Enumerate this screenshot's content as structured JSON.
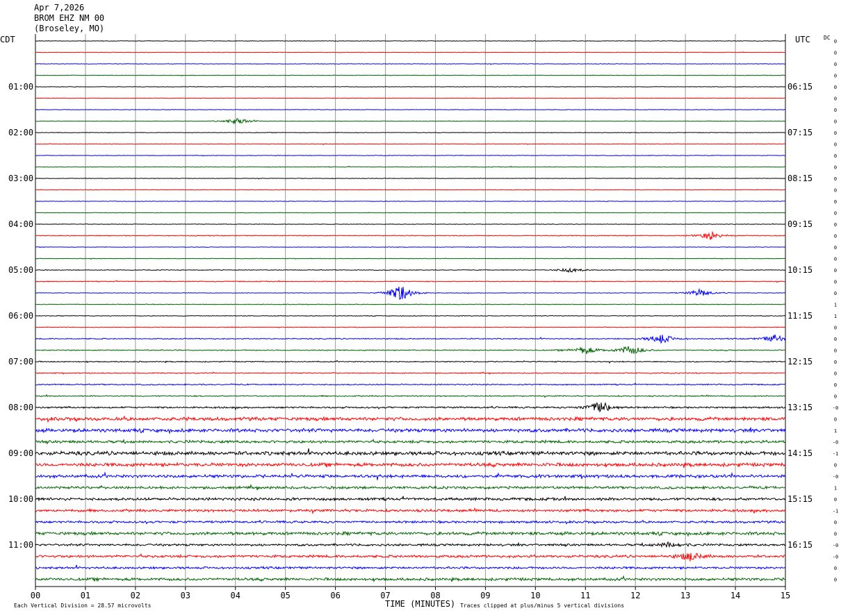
{
  "header": {
    "date": "Apr 7,2026",
    "station": "BROM EHZ NM 00",
    "location": "(Broseley, MO)"
  },
  "colors": {
    "trace_cycle": [
      "#000000",
      "#ff0000",
      "#0000ff",
      "#006400"
    ]
  },
  "chart_data": {
    "type": "line",
    "title": "",
    "xlabel": "TIME (MINUTES)",
    "x_ticks": [
      "00",
      "01",
      "02",
      "03",
      "04",
      "05",
      "06",
      "07",
      "08",
      "09",
      "10",
      "11",
      "12",
      "13",
      "14",
      "15"
    ],
    "xlim": [
      0,
      15
    ],
    "left_axis_label": "CDT",
    "right_axis_label": "UTC",
    "left_hour_labels": [
      "01:00",
      "02:00",
      "03:00",
      "04:00",
      "05:00",
      "06:00",
      "07:00",
      "08:00",
      "09:00",
      "10:00",
      "11:00"
    ],
    "right_hour_labels": [
      "06:15",
      "07:15",
      "08:15",
      "09:15",
      "10:15",
      "11:15",
      "12:15",
      "13:15",
      "14:15",
      "15:15",
      "16:15"
    ],
    "trace_count": 48,
    "minutes_per_trace": 15,
    "dc_label": "DC",
    "dc_values": [
      "0",
      "0",
      "0",
      "0",
      "0",
      "0",
      "0",
      "0",
      "0",
      "0",
      "0",
      "0",
      "0",
      "0",
      "0",
      "0",
      "0",
      "0",
      "0",
      "0",
      "0",
      "0",
      "0",
      "1",
      "1",
      "0",
      "0",
      "0",
      "0",
      "0",
      "0",
      "0",
      "-0",
      "0",
      "1",
      "-0",
      "-1",
      "0",
      "-0",
      "1",
      "0",
      "-1",
      "0",
      "0",
      "-0",
      "-0",
      "0",
      "0"
    ],
    "amplitude_scale": [
      0.3,
      0.3,
      0.3,
      0.3,
      0.3,
      0.3,
      0.3,
      0.3,
      0.3,
      0.3,
      0.3,
      0.4,
      0.3,
      0.3,
      0.3,
      0.3,
      0.3,
      0.5,
      0.3,
      0.3,
      0.4,
      0.5,
      0.3,
      0.4,
      0.4,
      0.4,
      0.6,
      0.6,
      0.6,
      0.6,
      0.7,
      0.7,
      1.0,
      2.0,
      2.0,
      1.6,
      2.2,
      2.0,
      1.8,
      1.5,
      1.6,
      1.5,
      1.3,
      1.8,
      1.3,
      1.5,
      1.3,
      1.6
    ],
    "events": [
      {
        "trace": 7,
        "minute": 4.05,
        "amp": 5
      },
      {
        "trace": 17,
        "minute": 13.5,
        "amp": 6
      },
      {
        "trace": 20,
        "minute": 10.7,
        "amp": 4
      },
      {
        "trace": 22,
        "minute": 7.3,
        "amp": 14
      },
      {
        "trace": 22,
        "minute": 13.3,
        "amp": 6
      },
      {
        "trace": 26,
        "minute": 12.5,
        "amp": 8
      },
      {
        "trace": 26,
        "minute": 14.8,
        "amp": 6
      },
      {
        "trace": 27,
        "minute": 11.0,
        "amp": 6
      },
      {
        "trace": 27,
        "minute": 11.9,
        "amp": 8
      },
      {
        "trace": 32,
        "minute": 11.3,
        "amp": 10
      },
      {
        "trace": 44,
        "minute": 12.7,
        "amp": 4
      },
      {
        "trace": 45,
        "minute": 13.1,
        "amp": 6
      }
    ],
    "footer_left": "Each Vertical Division =   28.57 microvolts",
    "footer_right": "Traces clipped at plus/minus 5 vertical divisions"
  }
}
